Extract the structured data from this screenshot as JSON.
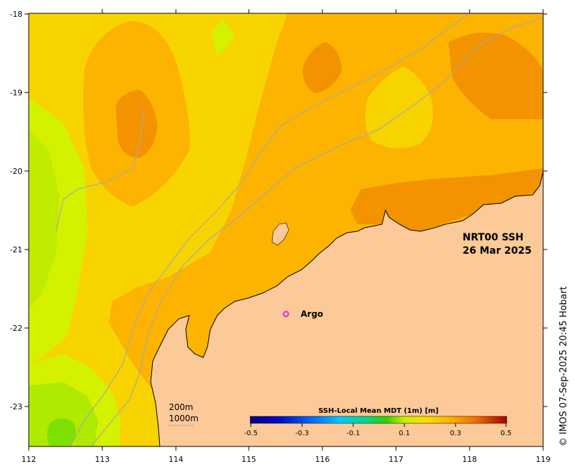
{
  "map": {
    "x_ticks": [
      "112",
      "113",
      "114",
      "115",
      "116",
      "117",
      "118",
      "119"
    ],
    "y_ticks": [
      "-18",
      "-19",
      "-20",
      "-21",
      "-22",
      "-23"
    ],
    "product_label": "NRT00 SSH",
    "date_label": "26 Mar 2025",
    "argo_label": "Argo",
    "contour_200m": "200m",
    "contour_1000m": "1000m",
    "credit": "© IMOS 07-Sep-2025 20:45 Hobart",
    "colorbar": {
      "title": "SSH-Local Mean MDT (1m) [m]",
      "ticks": [
        "-0.5",
        "-0.3",
        "-0.1",
        "0.1",
        "0.3",
        "0.5"
      ]
    }
  },
  "colors": {
    "land": "#fcc999",
    "ssh_low": "#d4f200",
    "ssh_mid": "#f7d400",
    "ssh_high": "#fcb400",
    "ssh_peak": "#f39300",
    "argo_marker": "#e020e0",
    "bathymetry_line": "#a8a8a8"
  }
}
